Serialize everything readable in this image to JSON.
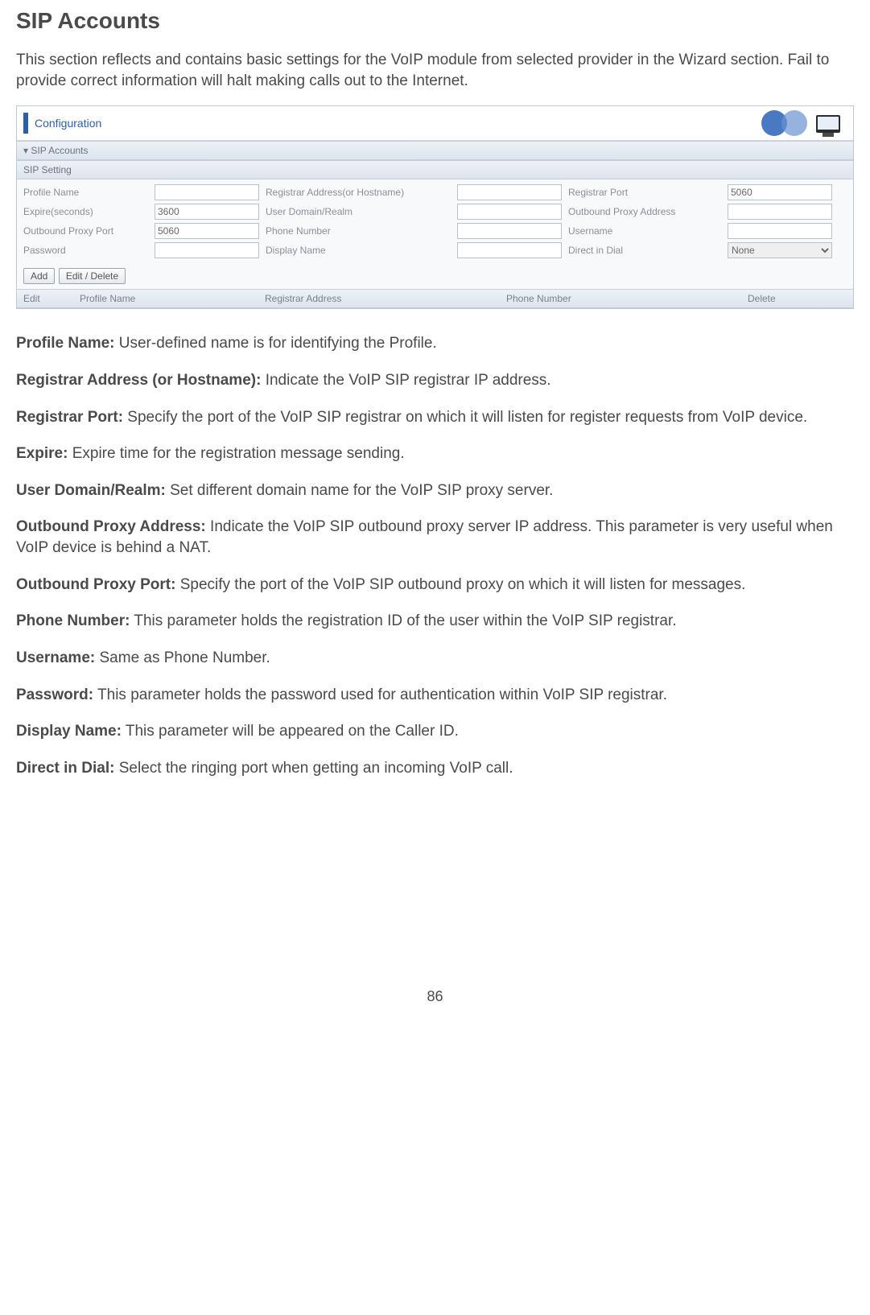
{
  "page": {
    "title": "SIP Accounts",
    "intro": "This section reflects and contains basic settings for the VoIP module from selected provider in the Wizard section. Fail to provide correct information will halt making calls out to the Internet.",
    "page_number": "86"
  },
  "screenshot": {
    "header_title": "Configuration",
    "section_label": "SIP Accounts",
    "subsection_label": "SIP Setting",
    "fields": {
      "profile_name_label": "Profile Name",
      "profile_name_value": "",
      "registrar_address_label": "Registrar Address(or Hostname)",
      "registrar_address_value": "",
      "registrar_port_label": "Registrar Port",
      "registrar_port_value": "5060",
      "expire_label": "Expire(seconds)",
      "expire_value": "3600",
      "user_domain_label": "User Domain/Realm",
      "user_domain_value": "",
      "outbound_proxy_address_label": "Outbound Proxy Address",
      "outbound_proxy_address_value": "",
      "outbound_proxy_port_label": "Outbound Proxy Port",
      "outbound_proxy_port_value": "5060",
      "phone_number_label": "Phone Number",
      "phone_number_value": "",
      "username_label": "Username",
      "username_value": "",
      "password_label": "Password",
      "password_value": "",
      "display_name_label": "Display Name",
      "display_name_value": "",
      "direct_dial_label": "Direct in Dial",
      "direct_dial_value": "None"
    },
    "buttons": {
      "add": "Add",
      "edit_delete": "Edit / Delete"
    },
    "list_headers": {
      "edit": "Edit",
      "profile_name": "Profile Name",
      "registrar_address": "Registrar Address",
      "phone_number": "Phone Number",
      "delete": "Delete"
    }
  },
  "descriptions": [
    {
      "term": "Profile Name:",
      "text": " User-defined name is for identifying the Profile."
    },
    {
      "term": "Registrar Address (or Hostname):",
      "text": " Indicate the VoIP SIP registrar IP address."
    },
    {
      "term": "Registrar Port:",
      "text": " Specify the port of the VoIP SIP registrar on which it will listen for register requests from VoIP device."
    },
    {
      "term": "Expire:",
      "text": " Expire time for the registration message sending."
    },
    {
      "term": "User Domain/Realm:",
      "text": " Set different domain name for the VoIP SIP proxy server."
    },
    {
      "term": "Outbound Proxy Address:",
      "text": " Indicate the VoIP SIP outbound proxy server IP address. This parameter is very useful when VoIP device is behind a NAT."
    },
    {
      "term": "Outbound Proxy Port:",
      "text": " Specify the port of the VoIP SIP outbound proxy on which it will listen for messages."
    },
    {
      "term": "Phone Number:",
      "text": " This parameter holds the registration ID of the user within the VoIP SIP registrar."
    },
    {
      "term": "Username:",
      "text": " Same as Phone Number."
    },
    {
      "term": "Password:",
      "text": " This parameter holds the password used for authentication within VoIP SIP registrar."
    },
    {
      "term": "Display Name:",
      "text": " This parameter will be appeared on the Caller ID."
    },
    {
      "term": "Direct in Dial:",
      "text": " Select the ringing port when getting an incoming VoIP call."
    }
  ]
}
